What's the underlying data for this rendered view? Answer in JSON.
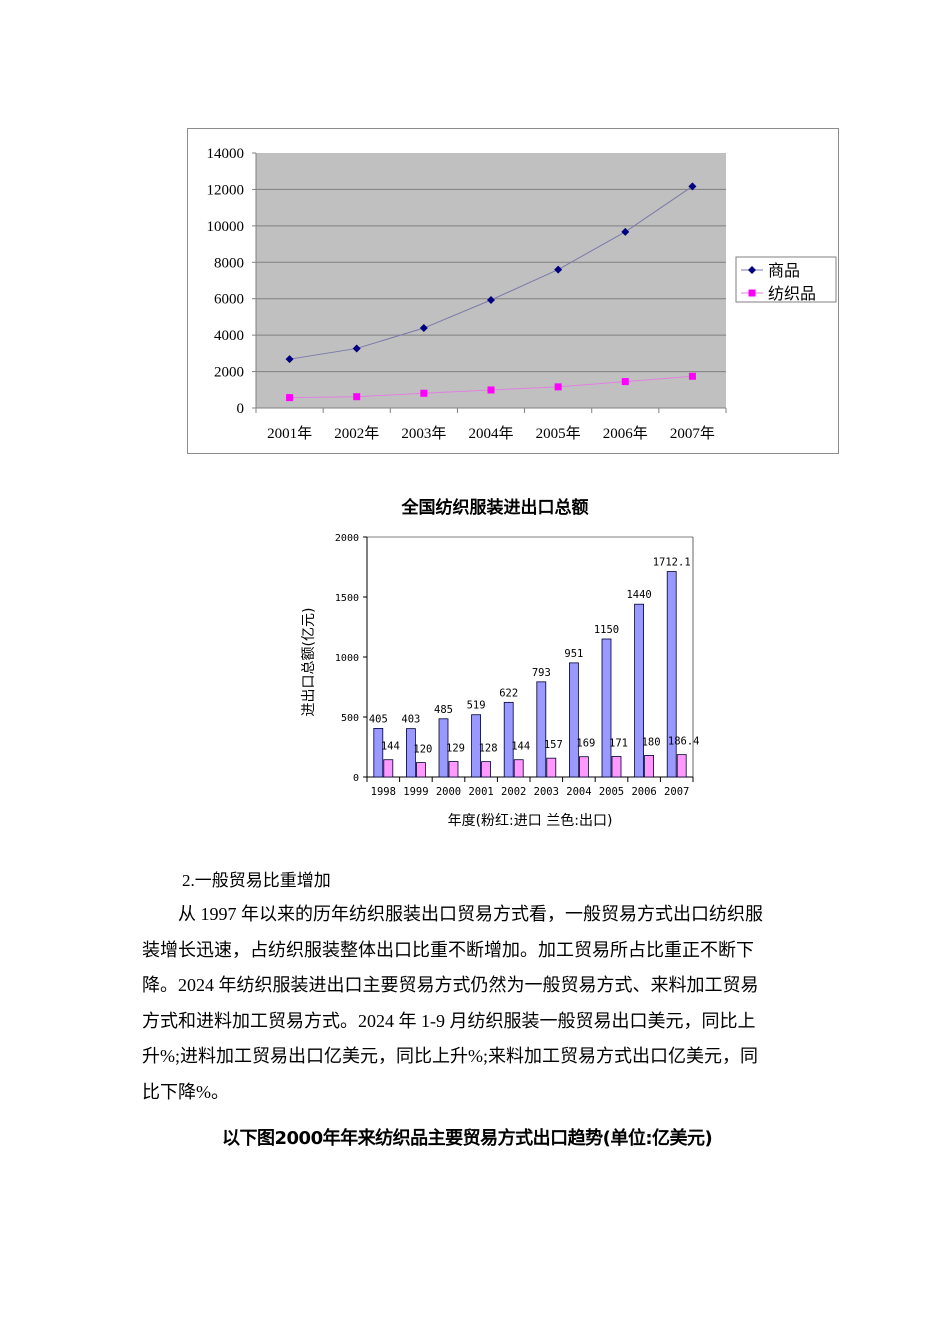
{
  "chart_data": [
    {
      "type": "line",
      "title": "",
      "xlabel": "",
      "ylabel": "",
      "categories": [
        "2001年",
        "2002年",
        "2003年",
        "2004年",
        "2005年",
        "2006年",
        "2007年"
      ],
      "series": [
        {
          "name": "商品",
          "color": "#000080",
          "marker": "diamond",
          "values": [
            2680,
            3270,
            4390,
            5930,
            7600,
            9670,
            12170
          ]
        },
        {
          "name": "纺织品",
          "color": "#ff00ff",
          "marker": "square",
          "values": [
            570,
            620,
            810,
            990,
            1160,
            1450,
            1740
          ]
        }
      ],
      "yticks": [
        0,
        2000,
        4000,
        6000,
        8000,
        10000,
        12000,
        14000
      ],
      "ylim": [
        0,
        14000
      ],
      "grid": true,
      "plot_background": "#c0c0c0",
      "legend_position": "right"
    },
    {
      "type": "bar",
      "title": "全国纺织服装进出口总额",
      "xlabel": "年度(粉红:进口 兰色:出口)",
      "ylabel": "进出口总额(亿元)",
      "categories": [
        "1998",
        "1999",
        "2000",
        "2001",
        "2002",
        "2003",
        "2004",
        "2005",
        "2006",
        "2007"
      ],
      "series": [
        {
          "name": "出口",
          "color": "#9999ff",
          "values": [
            405,
            403,
            485,
            519,
            622,
            793,
            951,
            1150,
            1440,
            1712.1
          ],
          "labels": [
            "405",
            "403",
            "485",
            "519",
            "622",
            "793",
            "951",
            "1150",
            "1440",
            "1712.1"
          ]
        },
        {
          "name": "进口",
          "color": "#ff99ff",
          "values": [
            144,
            120,
            129,
            128,
            144,
            157,
            169,
            171,
            180,
            186.4
          ],
          "labels": [
            "144",
            "120",
            "129",
            "128",
            "144",
            "157",
            "169",
            "171",
            "180",
            "186.4"
          ]
        }
      ],
      "yticks": [
        0,
        500,
        1000,
        1500,
        2000
      ],
      "ylim": [
        0,
        2000
      ],
      "grid": false
    }
  ],
  "document": {
    "section_heading": "2.一般贸易比重增加",
    "paragraph_lines": [
      "从 1997 年以来的历年纺织服装出口贸易方式看，一般贸易方式出口纺织服",
      "装增长迅速，占纺织服装整体出口比重不断增加。加工贸易所占比重正不断下",
      "降。2024 年纺织服装进出口主要贸易方式仍然为一般贸易方式、来料加工贸易",
      "方式和进料加工贸易方式。2024 年 1-9 月纺织服装一般贸易出口美元，同比上",
      "升%;进料加工贸易出口亿美元，同比上升%;来料加工贸易方式出口亿美元，同",
      "比下降%。"
    ],
    "figure_caption": "以下图2000年年来纺织品主要贸易方式出口趋势(单位:亿美元)"
  }
}
